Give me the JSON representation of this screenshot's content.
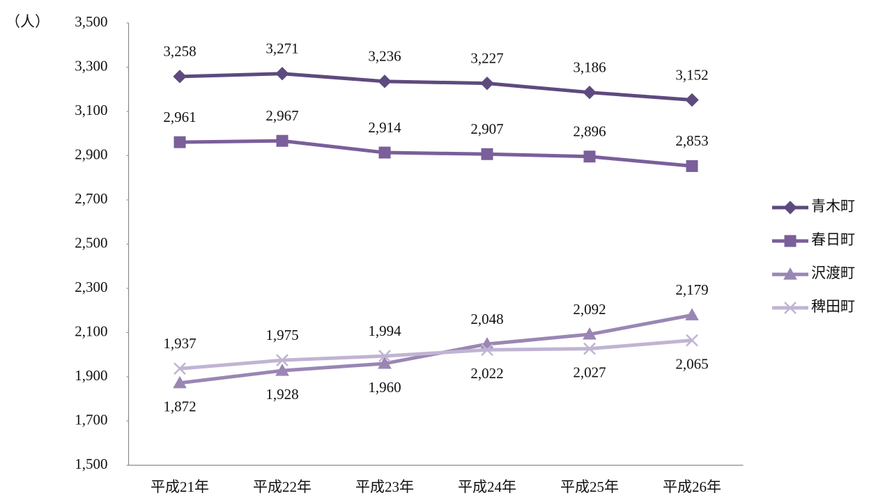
{
  "chart_data": {
    "type": "line",
    "y_unit_label": "（人）",
    "categories": [
      "平成21年",
      "平成22年",
      "平成23年",
      "平成24年",
      "平成25年",
      "平成26年"
    ],
    "series": [
      {
        "name": "青木町",
        "color": "#5e4a7e",
        "marker": "diamond",
        "values": [
          3258,
          3271,
          3236,
          3227,
          3186,
          3152
        ],
        "value_labels": [
          "3,258",
          "3,271",
          "3,236",
          "3,227",
          "3,186",
          "3,152"
        ]
      },
      {
        "name": "春日町",
        "color": "#7a5f9a",
        "marker": "square",
        "values": [
          2961,
          2967,
          2914,
          2907,
          2896,
          2853
        ],
        "value_labels": [
          "2,961",
          "2,967",
          "2,914",
          "2,907",
          "2,896",
          "2,853"
        ]
      },
      {
        "name": "沢渡町",
        "color": "#9a86b4",
        "marker": "triangle",
        "values": [
          1872,
          1928,
          1960,
          2048,
          2092,
          2179
        ],
        "value_labels": [
          "1,872",
          "1,928",
          "1,960",
          "2,048",
          "2,092",
          "2,179"
        ]
      },
      {
        "name": "稗田町",
        "color": "#c0b4d3",
        "marker": "x",
        "values": [
          1937,
          1975,
          1994,
          2022,
          2027,
          2065
        ],
        "value_labels": [
          "1,937",
          "1,975",
          "1,994",
          "2,022",
          "2,027",
          "2,065"
        ]
      }
    ],
    "ylim": [
      1500,
      3500
    ],
    "yticks": [
      {
        "value": 1500,
        "label": "1,500"
      },
      {
        "value": 1700,
        "label": "1,700"
      },
      {
        "value": 1900,
        "label": "1,900"
      },
      {
        "value": 2100,
        "label": "2,100"
      },
      {
        "value": 2300,
        "label": "2,300"
      },
      {
        "value": 2500,
        "label": "2,500"
      },
      {
        "value": 2700,
        "label": "2,700"
      },
      {
        "value": 2900,
        "label": "2,900"
      },
      {
        "value": 3100,
        "label": "3,100"
      },
      {
        "value": 3300,
        "label": "3,300"
      },
      {
        "value": 3500,
        "label": "3,500"
      }
    ],
    "grid": false,
    "legend": "right"
  }
}
